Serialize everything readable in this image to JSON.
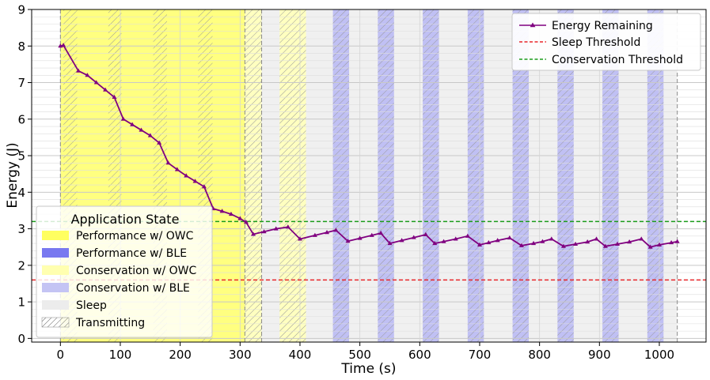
{
  "chart_data": {
    "type": "line",
    "xlabel": "Time (s)",
    "ylabel": "Energy (J)",
    "xlim": [
      -48,
      1078
    ],
    "ylim": [
      -0.1,
      9
    ],
    "xticks": [
      0,
      100,
      200,
      300,
      400,
      500,
      600,
      700,
      800,
      900,
      1000
    ],
    "yticks": [
      0,
      1,
      2,
      3,
      4,
      5,
      6,
      7,
      8,
      9
    ],
    "grid": true,
    "thresholds": [
      {
        "name": "Sleep Threshold",
        "value": 1.6,
        "color": "#e8262a"
      },
      {
        "name": "Conservation Threshold",
        "value": 3.2,
        "color": "#1a9c1a"
      }
    ],
    "series": [
      {
        "name": "Energy Remaining",
        "color": "#800080",
        "x": [
          0,
          5,
          30,
          45,
          60,
          75,
          90,
          105,
          120,
          135,
          150,
          165,
          180,
          195,
          210,
          225,
          240,
          255,
          270,
          285,
          300,
          310,
          322,
          340,
          360,
          380,
          400,
          425,
          445,
          460,
          480,
          500,
          520,
          535,
          550,
          570,
          590,
          610,
          625,
          640,
          660,
          680,
          700,
          715,
          730,
          750,
          770,
          790,
          805,
          820,
          840,
          860,
          880,
          895,
          910,
          930,
          950,
          970,
          985,
          1000,
          1020,
          1030
        ],
        "y": [
          8.0,
          8.02,
          7.32,
          7.2,
          7.0,
          6.8,
          6.6,
          6.0,
          5.85,
          5.7,
          5.55,
          5.35,
          4.8,
          4.62,
          4.45,
          4.3,
          4.15,
          3.55,
          3.48,
          3.4,
          3.28,
          3.18,
          2.85,
          2.92,
          3.0,
          3.05,
          2.72,
          2.82,
          2.9,
          2.96,
          2.66,
          2.74,
          2.82,
          2.88,
          2.6,
          2.68,
          2.76,
          2.84,
          2.6,
          2.65,
          2.72,
          2.8,
          2.56,
          2.62,
          2.68,
          2.75,
          2.54,
          2.6,
          2.65,
          2.72,
          2.52,
          2.58,
          2.64,
          2.72,
          2.52,
          2.58,
          2.64,
          2.72,
          2.5,
          2.56,
          2.62,
          2.65
        ]
      }
    ],
    "state_regions": [
      {
        "state": "Performance w/ OWC",
        "x0": 0,
        "x1": 308,
        "color": "#ffff80"
      },
      {
        "state": "Conservation w/ OWC",
        "x0": 308,
        "x1": 336,
        "color": "#ffffc0"
      },
      {
        "state": "Sleep",
        "x0": 336,
        "x1": 1030,
        "color": "#f0f0f0"
      },
      {
        "state": "Conservation w/ OWC",
        "x0": 366,
        "x1": 410,
        "color": "#ffffc0"
      },
      {
        "state": "Conservation w/ BLE",
        "x0": 455,
        "x1": 482,
        "color": "#c0c0f4"
      },
      {
        "state": "Conservation w/ BLE",
        "x0": 530,
        "x1": 557,
        "color": "#c0c0f4"
      },
      {
        "state": "Conservation w/ BLE",
        "x0": 605,
        "x1": 632,
        "color": "#c0c0f4"
      },
      {
        "state": "Conservation w/ BLE",
        "x0": 680,
        "x1": 707,
        "color": "#c0c0f4"
      },
      {
        "state": "Conservation w/ BLE",
        "x0": 755,
        "x1": 782,
        "color": "#c0c0f4"
      },
      {
        "state": "Conservation w/ BLE",
        "x0": 830,
        "x1": 857,
        "color": "#c0c0f4"
      },
      {
        "state": "Conservation w/ BLE",
        "x0": 905,
        "x1": 932,
        "color": "#c0c0f4"
      },
      {
        "state": "Conservation w/ BLE",
        "x0": 980,
        "x1": 1007,
        "color": "#c0c0f4"
      }
    ],
    "transmitting": [
      [
        5,
        28
      ],
      [
        80,
        102
      ],
      [
        155,
        178
      ],
      [
        230,
        254
      ],
      [
        308,
        336
      ],
      [
        366,
        410
      ],
      [
        455,
        482
      ],
      [
        530,
        557
      ],
      [
        605,
        632
      ],
      [
        680,
        707
      ],
      [
        755,
        782
      ],
      [
        830,
        857
      ],
      [
        905,
        932
      ],
      [
        980,
        1007
      ]
    ],
    "boundaries": [
      0,
      308,
      336,
      1030
    ],
    "legend_top": {
      "placement": "top-right",
      "entries": [
        "Energy Remaining",
        "Sleep Threshold",
        "Conservation Threshold"
      ]
    },
    "legend_state": {
      "placement": "lower-left",
      "title": "Application State",
      "entries": [
        {
          "label": "Performance w/ OWC",
          "color": "#ffff60"
        },
        {
          "label": "Performance w/ BLE",
          "color": "#7878f0"
        },
        {
          "label": "Conservation w/ OWC",
          "color": "#ffffb0"
        },
        {
          "label": "Conservation w/ BLE",
          "color": "#c4c4f4"
        },
        {
          "label": "Sleep",
          "color": "#ececec"
        },
        {
          "label": "Transmitting",
          "color": "hatch"
        }
      ]
    }
  }
}
